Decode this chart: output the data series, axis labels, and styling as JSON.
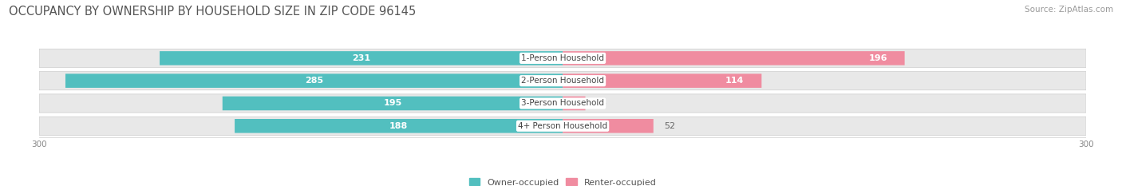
{
  "title": "OCCUPANCY BY OWNERSHIP BY HOUSEHOLD SIZE IN ZIP CODE 96145",
  "source": "Source: ZipAtlas.com",
  "categories": [
    "1-Person Household",
    "2-Person Household",
    "3-Person Household",
    "4+ Person Household"
  ],
  "owner_values": [
    231,
    285,
    195,
    188
  ],
  "renter_values": [
    196,
    114,
    13,
    52
  ],
  "owner_color": "#52bfbf",
  "renter_color": "#f08ca0",
  "bar_bg_color": "#e8e8e8",
  "axis_max": 300,
  "title_fontsize": 10.5,
  "source_fontsize": 7.5,
  "bar_label_fontsize": 8,
  "category_fontsize": 7.5,
  "tick_fontsize": 7.5,
  "legend_fontsize": 8,
  "background_color": "#ffffff",
  "bar_height": 0.62
}
